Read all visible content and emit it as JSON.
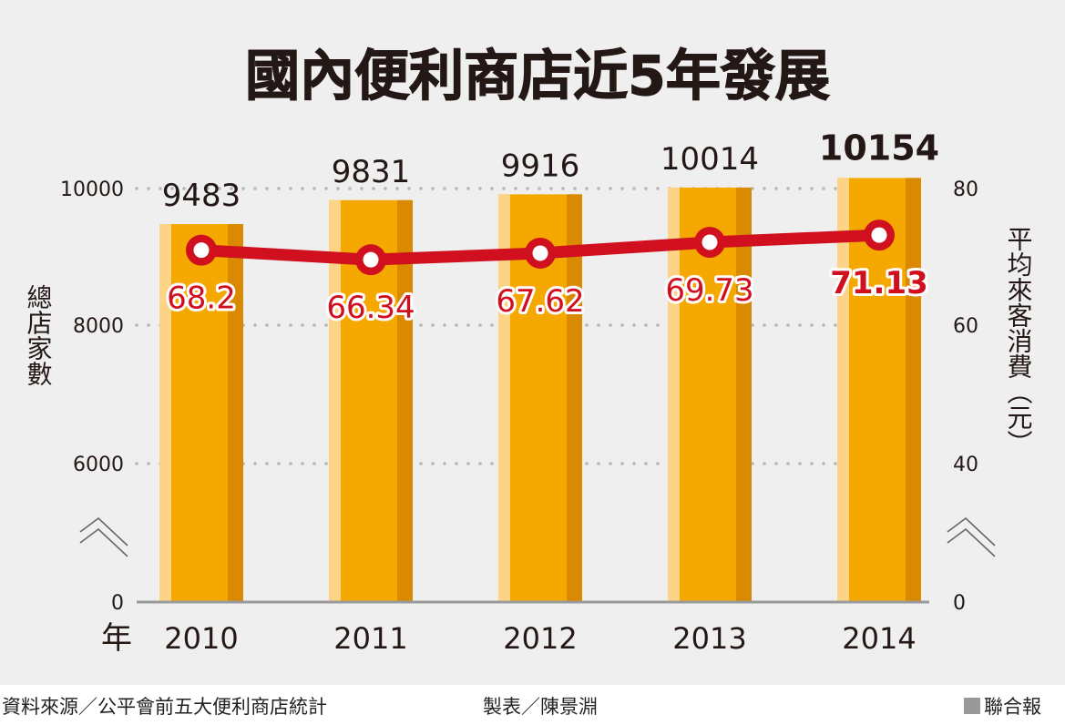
{
  "chart_data": {
    "type": "bar",
    "title": "國內便利商店近5年發展",
    "categories": [
      "2010",
      "2011",
      "2012",
      "2013",
      "2014"
    ],
    "x_unit_label": "年",
    "y_left_label": "總店家數",
    "y_right_label": "平均來客消費（元）",
    "y_left_ticks": [
      "0",
      "6000",
      "8000",
      "10000"
    ],
    "y_right_ticks": [
      "0",
      "40",
      "60",
      "80"
    ],
    "axis_break": true,
    "y_left_range": [
      5000,
      10350
    ],
    "y_right_range": [
      33.33,
      82.33
    ],
    "grid": true,
    "series": [
      {
        "kind": "bar",
        "axis": "left",
        "values": [
          9483,
          9831,
          9916,
          10014,
          10154
        ],
        "labels": [
          "9483",
          "9831",
          "9916",
          "10014",
          "10154"
        ],
        "color": "#f5a800"
      },
      {
        "kind": "line",
        "axis": "right",
        "values": [
          68.2,
          66.34,
          67.62,
          69.73,
          71.13
        ],
        "labels": [
          "68.2",
          "66.34",
          "67.62",
          "69.73",
          "71.13"
        ],
        "color": "#d0101f"
      }
    ]
  },
  "footer": {
    "source": "資料來源／公平會前五大便利商店統計",
    "credit": "製表／陳景淵",
    "brand": "聯合報"
  }
}
